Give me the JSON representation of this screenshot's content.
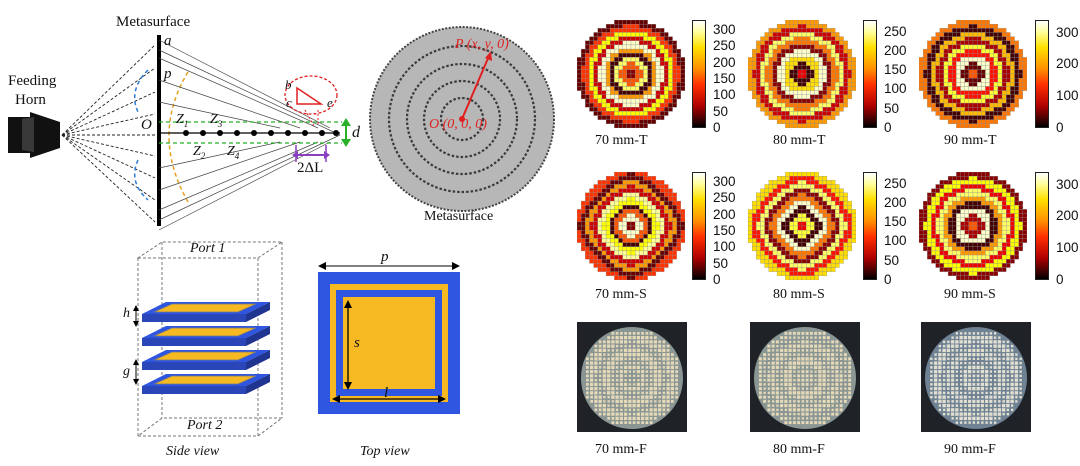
{
  "diagram": {
    "metasurface_label": "Metasurface",
    "feeding_horn_label": [
      "Feeding",
      "Horn"
    ],
    "point_a": "a",
    "point_p": "p",
    "point_o": "O",
    "z1": "Z",
    "z1_sub": "1",
    "z2": "Z",
    "z2_sub": "2",
    "z3": "Z",
    "z3_sub": "3",
    "z4": "Z",
    "z4_sub": "4",
    "d_label": "d",
    "delta_label": "2ΔL",
    "tri_b": "b",
    "tri_c": "c",
    "tri_e": "e"
  },
  "disc": {
    "p_label": "P (x, y, 0)",
    "o_label": "O (0, 0, 0)",
    "caption": "Metasurface"
  },
  "unitcell": {
    "port1": "Port 1",
    "port2": "Port 2",
    "h_label": "h",
    "g_label": "g",
    "side_caption": "Side view",
    "p_label": "p",
    "s_label": "s",
    "l_label": "l",
    "top_caption": "Top view"
  },
  "heatmaps": [
    {
      "caption": "70 mm-T",
      "ticks": [
        "300",
        "250",
        "200",
        "150",
        "100",
        "50",
        "0"
      ],
      "max": 330
    },
    {
      "caption": "80 mm-T",
      "ticks": [
        "250",
        "200",
        "150",
        "100",
        "50",
        "0"
      ],
      "max": 280
    },
    {
      "caption": "90 mm-T",
      "ticks": [
        "300",
        "200",
        "100",
        "0"
      ],
      "max": 340
    },
    {
      "caption": "70 mm-S",
      "ticks": [
        "300",
        "250",
        "200",
        "150",
        "100",
        "50",
        "0"
      ],
      "max": 330
    },
    {
      "caption": "80 mm-S",
      "ticks": [
        "250",
        "200",
        "150",
        "100",
        "50",
        "0"
      ],
      "max": 280
    },
    {
      "caption": "90 mm-S",
      "ticks": [
        "300",
        "200",
        "100",
        "0"
      ],
      "max": 340
    }
  ],
  "photos": [
    {
      "caption": "70 mm-F"
    },
    {
      "caption": "80 mm-F"
    },
    {
      "caption": "90 mm-F"
    }
  ],
  "colors": {
    "inner_patch": "#f7b922",
    "outer_ring": "#2f56e0",
    "disc_gray": "#b7b7b7",
    "annotation_red": "#e02020"
  }
}
